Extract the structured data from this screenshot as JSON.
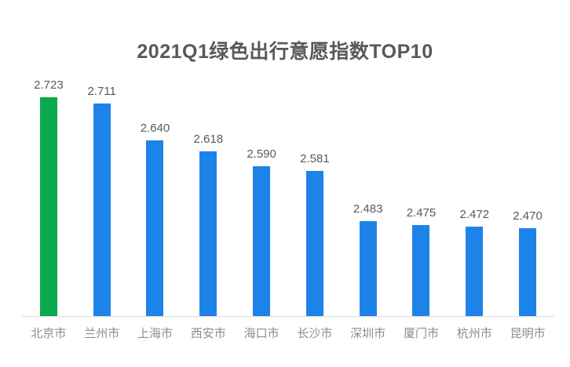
{
  "chart_data": {
    "type": "bar",
    "title": "2021Q1绿色出行意愿指数TOP10",
    "categories": [
      "北京市",
      "兰州市",
      "上海市",
      "西安市",
      "海口市",
      "长沙市",
      "深圳市",
      "厦门市",
      "杭州市",
      "昆明市"
    ],
    "values": [
      2.723,
      2.711,
      2.64,
      2.618,
      2.59,
      2.581,
      2.483,
      2.475,
      2.472,
      2.47
    ],
    "value_labels": [
      "2.723",
      "2.711",
      "2.640",
      "2.618",
      "2.590",
      "2.581",
      "2.483",
      "2.475",
      "2.472",
      "2.470"
    ],
    "xlabel": "",
    "ylabel": "",
    "ylim": [
      2.3,
      2.77
    ],
    "grid": false,
    "legend": false,
    "highlight_index": 0,
    "colors": {
      "highlight_bar": "#0aa94e",
      "default_bar": "#1e83e8",
      "title_text": "#595959",
      "value_label_text": "#595959",
      "category_label_text": "#8c8c8c",
      "axis_line": "#d9d9d9",
      "background": "#ffffff"
    }
  }
}
